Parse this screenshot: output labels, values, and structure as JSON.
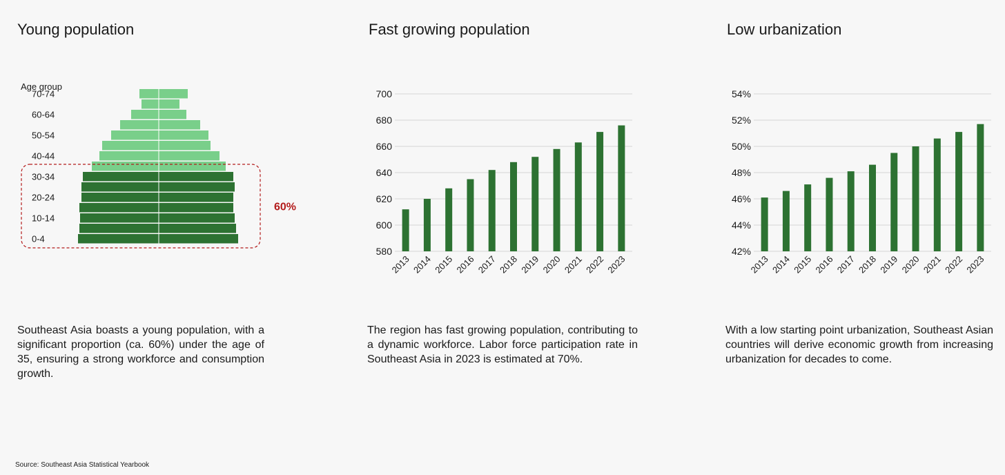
{
  "panels": [
    {
      "title": "Young population",
      "text": "Southeast Asia boasts a young population, with a significant proportion (ca. 60%) under the age of 35, ensuring a strong workforce and consumption growth."
    },
    {
      "title": "Fast growing population",
      "text": "The region has fast growing population, contributing to a dynamic workforce. Labor force participation rate in Southeast Asia in 2023 is estimated at 70%."
    },
    {
      "title": "Low urbanization",
      "text": "With a low starting point urbanization, Southeast Asian countries will derive economic growth from increasing urbanization for decades to come."
    }
  ],
  "source": "Source: Southeast Asia Statistical Yearbook",
  "colors": {
    "dark_green": "#2d7232",
    "light_green": "#79cf8a",
    "highlight_red": "#b31b1b",
    "grid": "#d4d4d4"
  },
  "chart_data": [
    {
      "type": "bar",
      "title": "Young population",
      "subtype": "population-pyramid",
      "ylabel": "Age group",
      "tick_labels": [
        "70-74",
        "60-64",
        "50-54",
        "40-44",
        "30-34",
        "20-24",
        "10-14",
        "0-4"
      ],
      "age_groups": [
        "70-74",
        "65-69",
        "60-64",
        "55-59",
        "50-54",
        "45-49",
        "40-44",
        "35-39",
        "30-34",
        "25-29",
        "20-24",
        "15-19",
        "10-14",
        "5-9",
        "0-4"
      ],
      "series": [
        {
          "name": "Left",
          "values": [
            2.8,
            2.5,
            4.0,
            5.6,
            6.9,
            8.2,
            8.6,
            9.7,
            11.0,
            11.2,
            11.2,
            11.5,
            11.4,
            11.5,
            11.7
          ]
        },
        {
          "name": "Right",
          "values": [
            4.2,
            3.0,
            4.0,
            6.0,
            7.2,
            7.5,
            8.8,
            9.7,
            10.8,
            11.0,
            10.8,
            10.8,
            11.0,
            11.2,
            11.5
          ]
        }
      ],
      "highlight": {
        "label": "60%",
        "from": "0-4",
        "to": "30-34"
      }
    },
    {
      "type": "bar",
      "title": "Fast growing population",
      "categories": [
        "2013",
        "2014",
        "2015",
        "2016",
        "2017",
        "2018",
        "2019",
        "2020",
        "2021",
        "2022",
        "2023"
      ],
      "values": [
        612,
        620,
        628,
        635,
        642,
        648,
        652,
        658,
        663,
        671,
        676
      ],
      "ylim": [
        580,
        700
      ],
      "yticks": [
        580,
        600,
        620,
        640,
        660,
        680,
        700
      ],
      "ytick_labels": [
        "580",
        "600",
        "620",
        "640",
        "660",
        "680",
        "700"
      ]
    },
    {
      "type": "bar",
      "title": "Low urbanization",
      "categories": [
        "2013",
        "2014",
        "2015",
        "2016",
        "2017",
        "2018",
        "2019",
        "2020",
        "2021",
        "2022",
        "2023"
      ],
      "values": [
        46.1,
        46.6,
        47.1,
        47.6,
        48.1,
        48.6,
        49.5,
        50.0,
        50.6,
        51.1,
        51.7
      ],
      "ylim": [
        42,
        54
      ],
      "yticks": [
        42,
        44,
        46,
        48,
        50,
        52,
        54
      ],
      "ytick_labels": [
        "42%",
        "44%",
        "46%",
        "48%",
        "50%",
        "52%",
        "54%"
      ]
    }
  ]
}
